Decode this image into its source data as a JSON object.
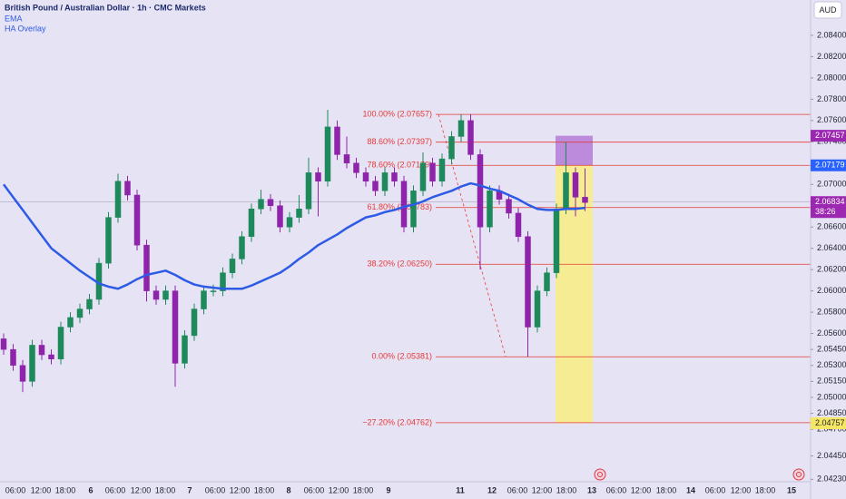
{
  "chart_data": {
    "type": "candlestick",
    "title": "British Pound / Australian Dollar · 1h · CMC Markets",
    "indicators": [
      "EMA",
      "HA Overlay"
    ],
    "currency": "AUD",
    "up_color": "#1e8a5c",
    "down_color": "#8e24aa",
    "ema_color": "#2e5be6",
    "fib_color": "#e53935",
    "ylim": [
      2.04284,
      2.08732
    ],
    "yticks": [
      {
        "value": 2.084,
        "label": "2.08400"
      },
      {
        "value": 2.082,
        "label": "2.08200"
      },
      {
        "value": 2.08,
        "label": "2.08000"
      },
      {
        "value": 2.078,
        "label": "2.07800"
      },
      {
        "value": 2.076,
        "label": "2.07600"
      },
      {
        "value": 2.074,
        "label": "2.07400"
      },
      {
        "value": 2.07,
        "label": "2.07000"
      },
      {
        "value": 2.066,
        "label": "2.06600"
      },
      {
        "value": 2.064,
        "label": "2.06400"
      },
      {
        "value": 2.062,
        "label": "2.06200"
      },
      {
        "value": 2.06,
        "label": "2.06000"
      },
      {
        "value": 2.058,
        "label": "2.05800"
      },
      {
        "value": 2.056,
        "label": "2.05600"
      },
      {
        "value": 2.0545,
        "label": "2.05450"
      },
      {
        "value": 2.053,
        "label": "2.05300"
      },
      {
        "value": 2.0515,
        "label": "2.05150"
      },
      {
        "value": 2.05,
        "label": "2.05000"
      },
      {
        "value": 2.0485,
        "label": "2.04850"
      },
      {
        "value": 2.047,
        "label": "2.04700"
      },
      {
        "value": 2.0445,
        "label": "2.04450"
      },
      {
        "value": 2.0423,
        "label": "2.04230"
      }
    ],
    "x_labels": [
      "06:00",
      "12:00",
      "18:00",
      "6",
      "06:00",
      "12:00",
      "18:00",
      "7",
      "06:00",
      "12:00",
      "18:00",
      "8",
      "06:00",
      "12:00",
      "18:00",
      "9",
      "11",
      "12",
      "06:00",
      "12:00",
      "18:00",
      "13",
      "06:00",
      "12:00",
      "18:00",
      "14",
      "06:00",
      "12:00",
      "18:00",
      "15"
    ],
    "candles": [
      [
        2.0555,
        2.056,
        2.054,
        2.0545
      ],
      [
        2.0545,
        2.055,
        2.0525,
        2.053
      ],
      [
        2.053,
        2.0535,
        2.0505,
        2.0515
      ],
      [
        2.0515,
        2.0554,
        2.051,
        2.0549
      ],
      [
        2.0549,
        2.0554,
        2.0535,
        2.054
      ],
      [
        2.054,
        2.0545,
        2.0531,
        2.0536
      ],
      [
        2.0536,
        2.0571,
        2.0531,
        2.0566
      ],
      [
        2.0566,
        2.058,
        2.0561,
        2.0575
      ],
      [
        2.0575,
        2.0588,
        2.057,
        2.0583
      ],
      [
        2.0583,
        2.0597,
        2.0578,
        2.0592
      ],
      [
        2.0592,
        2.0631,
        2.0587,
        2.0626
      ],
      [
        2.0626,
        2.0674,
        2.0621,
        2.0669
      ],
      [
        2.0669,
        2.071,
        2.0664,
        2.0703
      ],
      [
        2.0703,
        2.0708,
        2.0685,
        2.069
      ],
      [
        2.069,
        2.0695,
        2.0638,
        2.0643
      ],
      [
        2.0643,
        2.0648,
        2.059,
        2.06
      ],
      [
        2.06,
        2.0605,
        2.0587,
        2.0592
      ],
      [
        2.0592,
        2.0605,
        2.0587,
        2.06
      ],
      [
        2.06,
        2.0605,
        2.051,
        2.0532
      ],
      [
        2.0532,
        2.0563,
        2.0527,
        2.0558
      ],
      [
        2.0558,
        2.0588,
        2.0553,
        2.0583
      ],
      [
        2.0583,
        2.0605,
        2.0578,
        2.06
      ],
      [
        2.06,
        2.0606,
        2.0595,
        2.06
      ],
      [
        2.06,
        2.0622,
        2.0595,
        2.0617
      ],
      [
        2.0617,
        2.0635,
        2.0612,
        2.063
      ],
      [
        2.063,
        2.0656,
        2.0625,
        2.0651
      ],
      [
        2.0651,
        2.0682,
        2.0646,
        2.0677
      ],
      [
        2.0677,
        2.0695,
        2.0672,
        2.0686
      ],
      [
        2.0686,
        2.0691,
        2.0675,
        2.068
      ],
      [
        2.068,
        2.0685,
        2.0655,
        2.066
      ],
      [
        2.066,
        2.0674,
        2.0655,
        2.0669
      ],
      [
        2.0669,
        2.069,
        2.0664,
        2.0677
      ],
      [
        2.0677,
        2.0725,
        2.0672,
        2.0711
      ],
      [
        2.0711,
        2.0716,
        2.067,
        2.0703
      ],
      [
        2.0703,
        2.077,
        2.0698,
        2.0754
      ],
      [
        2.0754,
        2.076,
        2.0723,
        2.0728
      ],
      [
        2.0728,
        2.0745,
        2.0715,
        2.072
      ],
      [
        2.072,
        2.0725,
        2.0706,
        2.0711
      ],
      [
        2.0711,
        2.0716,
        2.0698,
        2.0703
      ],
      [
        2.0703,
        2.0708,
        2.0689,
        2.0694
      ],
      [
        2.0694,
        2.0716,
        2.0689,
        2.0711
      ],
      [
        2.0711,
        2.0716,
        2.0698,
        2.0703
      ],
      [
        2.0703,
        2.0708,
        2.0655,
        2.066
      ],
      [
        2.066,
        2.0699,
        2.0655,
        2.0694
      ],
      [
        2.0694,
        2.073,
        2.0689,
        2.072
      ],
      [
        2.072,
        2.0725,
        2.0698,
        2.0703
      ],
      [
        2.0703,
        2.0729,
        2.0698,
        2.0724
      ],
      [
        2.0724,
        2.075,
        2.0719,
        2.0745
      ],
      [
        2.0745,
        2.0766,
        2.074,
        2.076
      ],
      [
        2.076,
        2.0766,
        2.0723,
        2.0728
      ],
      [
        2.0728,
        2.0733,
        2.062,
        2.066
      ],
      [
        2.066,
        2.0699,
        2.0655,
        2.0694
      ],
      [
        2.0694,
        2.0699,
        2.0681,
        2.0686
      ],
      [
        2.0686,
        2.0691,
        2.0668,
        2.0673
      ],
      [
        2.0673,
        2.0678,
        2.0646,
        2.0651
      ],
      [
        2.0651,
        2.0656,
        2.0538,
        2.0566
      ],
      [
        2.0566,
        2.0605,
        2.0561,
        2.06
      ],
      [
        2.06,
        2.0622,
        2.0595,
        2.0617
      ],
      [
        2.0617,
        2.0682,
        2.0612,
        2.0677
      ],
      [
        2.0677,
        2.074,
        2.0672,
        2.0711
      ],
      [
        2.0711,
        2.0716,
        2.067,
        2.0688
      ],
      [
        2.0688,
        2.0715,
        2.0675,
        2.0683
      ]
    ],
    "ema": [
      2.07,
      2.0688,
      2.0676,
      2.0664,
      2.0652,
      2.064,
      2.0633,
      2.0626,
      2.0619,
      2.0613,
      2.0607,
      2.0604,
      2.0602,
      2.0606,
      2.0611,
      2.0615,
      2.0617,
      2.0619,
      2.0615,
      2.061,
      2.0606,
      2.0604,
      2.0603,
      2.0602,
      2.0602,
      2.0602,
      2.0605,
      2.0609,
      2.0613,
      2.0617,
      2.0623,
      2.063,
      2.0636,
      2.0643,
      2.0648,
      2.0653,
      2.0659,
      2.0664,
      2.0669,
      2.0671,
      2.0674,
      2.0676,
      2.0679,
      2.0681,
      2.0684,
      2.0688,
      2.0691,
      2.0694,
      2.0698,
      2.0701,
      2.0699,
      2.0696,
      2.0694,
      2.069,
      2.0686,
      2.0681,
      2.0677,
      2.0676,
      2.0676,
      2.0677,
      2.0677,
      2.0678
    ],
    "fib_levels": [
      {
        "label": "100.00% (2.07657)",
        "value": 2.07657
      },
      {
        "label": "88.60% (2.07397)",
        "value": 2.07397
      },
      {
        "label": "78.60% (2.07179)",
        "value": 2.07179
      },
      {
        "label": "61.80% (2.06783)",
        "value": 2.06783
      },
      {
        "label": "38.20% (2.06250)",
        "value": 2.0625
      },
      {
        "label": "0.00% (2.05381)",
        "value": 2.05381
      },
      {
        "label": "−27.20% (2.04762)",
        "value": 2.04762
      }
    ],
    "position": {
      "stop": 2.07457,
      "entry": 2.07179,
      "target": 2.04757,
      "stop_color": "#b57bd6",
      "target_color": "#f7ec8a",
      "entry_color": "#2962ff",
      "stop_tag_color": "#9c27b0",
      "target_tag_color": "#f5e663"
    },
    "last_price": 2.06834,
    "last_price_color": "#9c27b0",
    "countdown": "38:26"
  }
}
